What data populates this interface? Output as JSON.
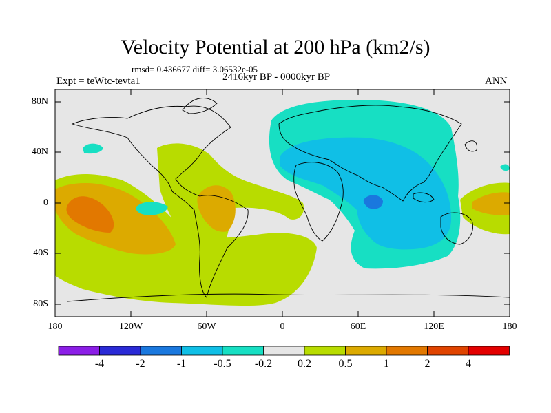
{
  "figure": {
    "title": "Velocity Potential at 200 hPa (km2/s)",
    "stats_line": "rmsd= 0.436677 diff= 3.06532e-05",
    "experiment_label": "Expt = teWtc-tevta1",
    "period_label": "2416kyr BP - 0000kyr BP",
    "season_label": "ANN"
  },
  "axes": {
    "lat_ticks": [
      "80N",
      "40N",
      "0",
      "40S",
      "80S"
    ],
    "lon_ticks": [
      "180",
      "120W",
      "60W",
      "0",
      "60E",
      "120E",
      "180"
    ]
  },
  "colorbar": {
    "labels": [
      "-4",
      "-2",
      "-1",
      "-0.5",
      "-0.2",
      "0.2",
      "0.5",
      "1",
      "2",
      "4"
    ],
    "colors": [
      "#8b1ee6",
      "#2a2ad6",
      "#1a78de",
      "#10bfe6",
      "#17dfc3",
      "#e6e6e6",
      "#b8dc00",
      "#dcaa00",
      "#e27800",
      "#e04400",
      "#e30000"
    ]
  },
  "map_colors": {
    "background": "#e6e6e6",
    "pos_02": "#b8dc00",
    "pos_05": "#dcaa00",
    "pos_1": "#e27800",
    "neg_02": "#17dfc3",
    "neg_05": "#10bfe6",
    "neg_1": "#1a78de"
  }
}
